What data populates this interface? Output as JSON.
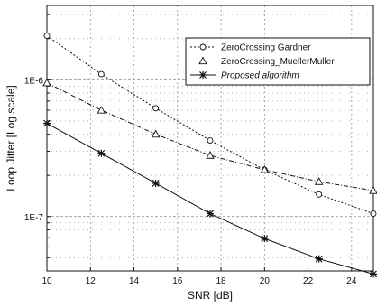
{
  "chart_data": {
    "type": "line",
    "xlabel": "SNR [dB]",
    "ylabel": "Loop Jitter [Log scale]",
    "xlim": [
      10,
      25
    ],
    "ylim": [
      4e-08,
      3.5e-06
    ],
    "y_scale": "log",
    "grid": "dotted",
    "legend_placement": "top-right",
    "x_ticks": [
      10,
      12,
      14,
      16,
      18,
      20,
      22,
      24
    ],
    "x_tick_labels": [
      "10",
      "12",
      "14",
      "16",
      "18",
      "20",
      "22",
      "24"
    ],
    "y_ticks": [
      1e-07,
      1e-06
    ],
    "y_tick_labels": [
      "1E-7",
      "1E-6"
    ],
    "series": [
      {
        "name": "ZeroCrossing Gardner",
        "marker": "circle",
        "line_style": "dotted",
        "x": [
          10,
          12.5,
          15,
          17.5,
          20,
          22.5,
          25
        ],
        "values": [
          2.1e-06,
          1.1e-06,
          6.2e-07,
          3.6e-07,
          2.2e-07,
          1.45e-07,
          1.05e-07
        ]
      },
      {
        "name": "ZeroCrossing_MuellerMuller",
        "marker": "triangle",
        "line_style": "dash-dot",
        "x": [
          10,
          12.5,
          15,
          17.5,
          20,
          22.5,
          25
        ],
        "values": [
          9.5e-07,
          6e-07,
          4e-07,
          2.8e-07,
          2.2e-07,
          1.8e-07,
          1.55e-07
        ]
      },
      {
        "name": "Proposed algorithm",
        "marker": "asterisk",
        "line_style": "solid",
        "x": [
          10,
          12.5,
          15,
          17.5,
          20,
          22.5,
          25
        ],
        "values": [
          4.8e-07,
          2.9e-07,
          1.75e-07,
          1.05e-07,
          6.9e-08,
          4.9e-08,
          3.8e-08
        ]
      }
    ]
  }
}
